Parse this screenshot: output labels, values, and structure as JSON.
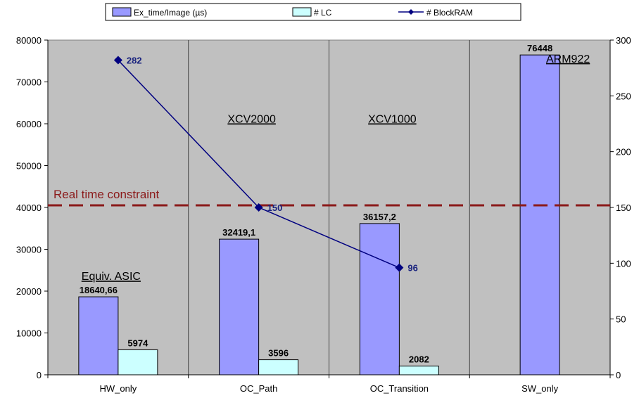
{
  "chart_data": {
    "type": "bar",
    "categories": [
      "HW_only",
      "OC_Path",
      "OC_Transition",
      "SW_only"
    ],
    "series": [
      {
        "name": "Ex_time/Image (µs)",
        "kind": "bar",
        "axis": "left",
        "color": "#9999ff",
        "values": [
          18640.66,
          32419.1,
          36157.2,
          76448
        ],
        "labels": [
          "18640,66",
          "32419,1",
          "36157,2",
          "76448"
        ]
      },
      {
        "name": "# LC",
        "kind": "bar",
        "axis": "left",
        "color": "#ccffff",
        "values": [
          5974,
          3596,
          2082,
          null
        ],
        "labels": [
          "5974",
          "3596",
          "2082",
          ""
        ]
      },
      {
        "name": "# BlockRAM",
        "kind": "line",
        "axis": "right",
        "color": "#000080",
        "values": [
          282,
          150,
          96,
          null
        ],
        "labels": [
          "282",
          "150",
          "96",
          ""
        ]
      }
    ],
    "y_left": {
      "min": 0,
      "max": 80000,
      "ticks": [
        0,
        10000,
        20000,
        30000,
        40000,
        50000,
        60000,
        70000,
        80000
      ]
    },
    "y_right": {
      "min": 0,
      "max": 300,
      "ticks": [
        0,
        50,
        100,
        150,
        200,
        250,
        300
      ]
    },
    "reference_line": {
      "label": "Real time constraint",
      "value": 40500,
      "color": "#8b1a1a",
      "style": "dashed"
    },
    "annotations": [
      "Equiv. ASIC",
      "XCV2000",
      "XCV1000",
      "ARM922"
    ],
    "plot_background": "#c0c0c0",
    "legend_position": "top",
    "title": "",
    "xlabel": "",
    "ylabel": ""
  }
}
